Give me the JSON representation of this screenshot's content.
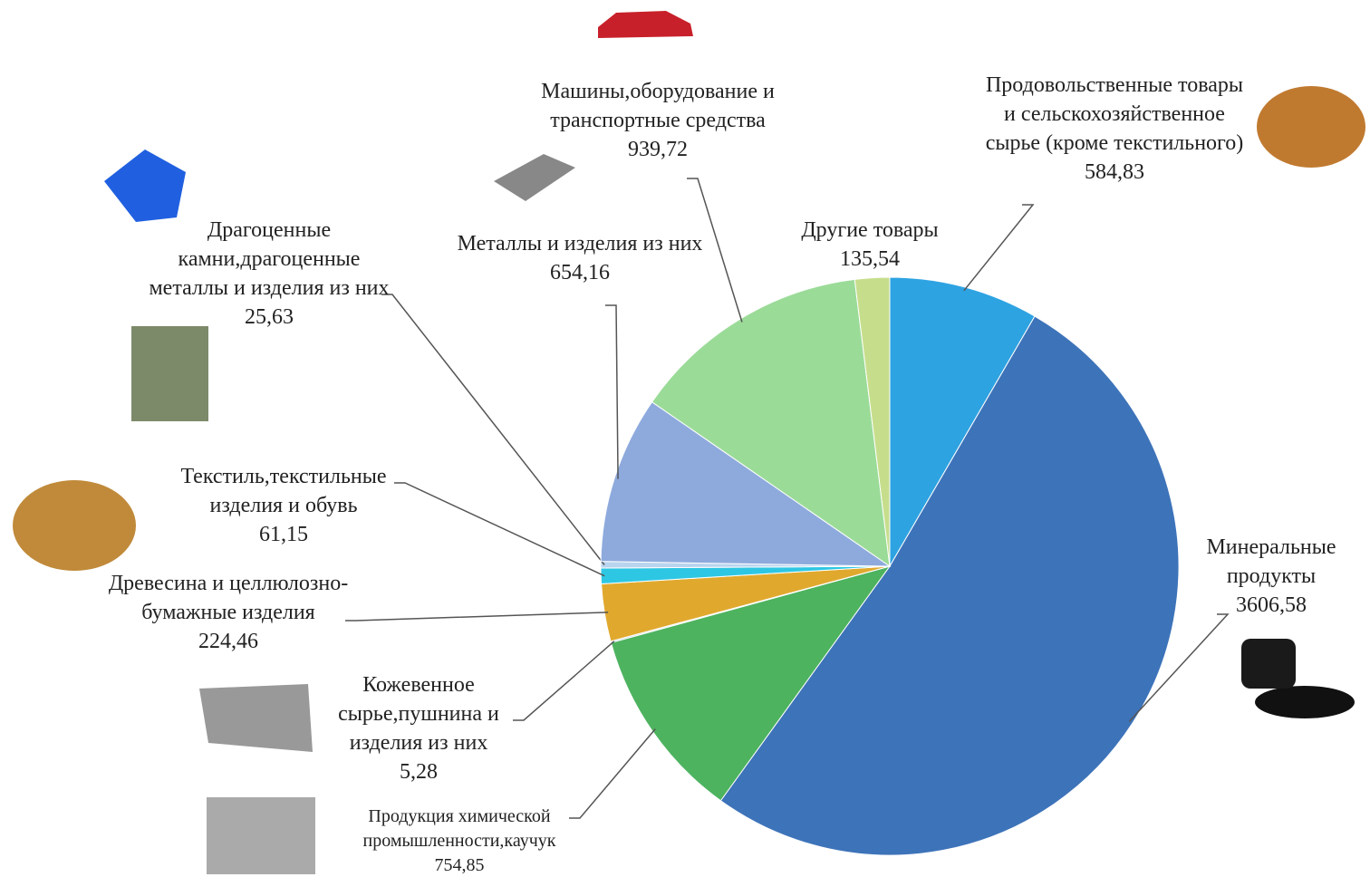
{
  "chart_data": {
    "type": "pie",
    "categories": [
      "Продовольственные товары и сельскохозяйственное сырье (кроме текстильного)",
      "Минеральные продукты",
      "Продукция химической промышленности,каучук",
      "Кожевенное сырье,пушнина и изделия из них",
      "Древесина и целлюлозно-бумажные изделия",
      "Текстиль,текстильные изделия и обувь",
      "Драгоценные камни,драгоценные металлы и изделия из них",
      "Металлы и изделия из них",
      "Машины,оборудование и транспортные средства",
      "Другие товары"
    ],
    "values": [
      584.83,
      3606.58,
      754.85,
      5.28,
      224.46,
      61.15,
      25.63,
      654.16,
      939.72,
      135.54
    ],
    "value_labels": [
      "584,83",
      "3606,58",
      "754,85",
      "5,28",
      "224,46",
      "61,15",
      "25,63",
      "654,16",
      "939,72",
      "135,54"
    ],
    "colors": [
      "#2ea3e2",
      "#3d73b9",
      "#4db35f",
      "#9dc3e6",
      "#e0a92e",
      "#2ec7e3",
      "#b9d4ee",
      "#8eaadd",
      "#9bdb98",
      "#c6de8c"
    ]
  }
}
